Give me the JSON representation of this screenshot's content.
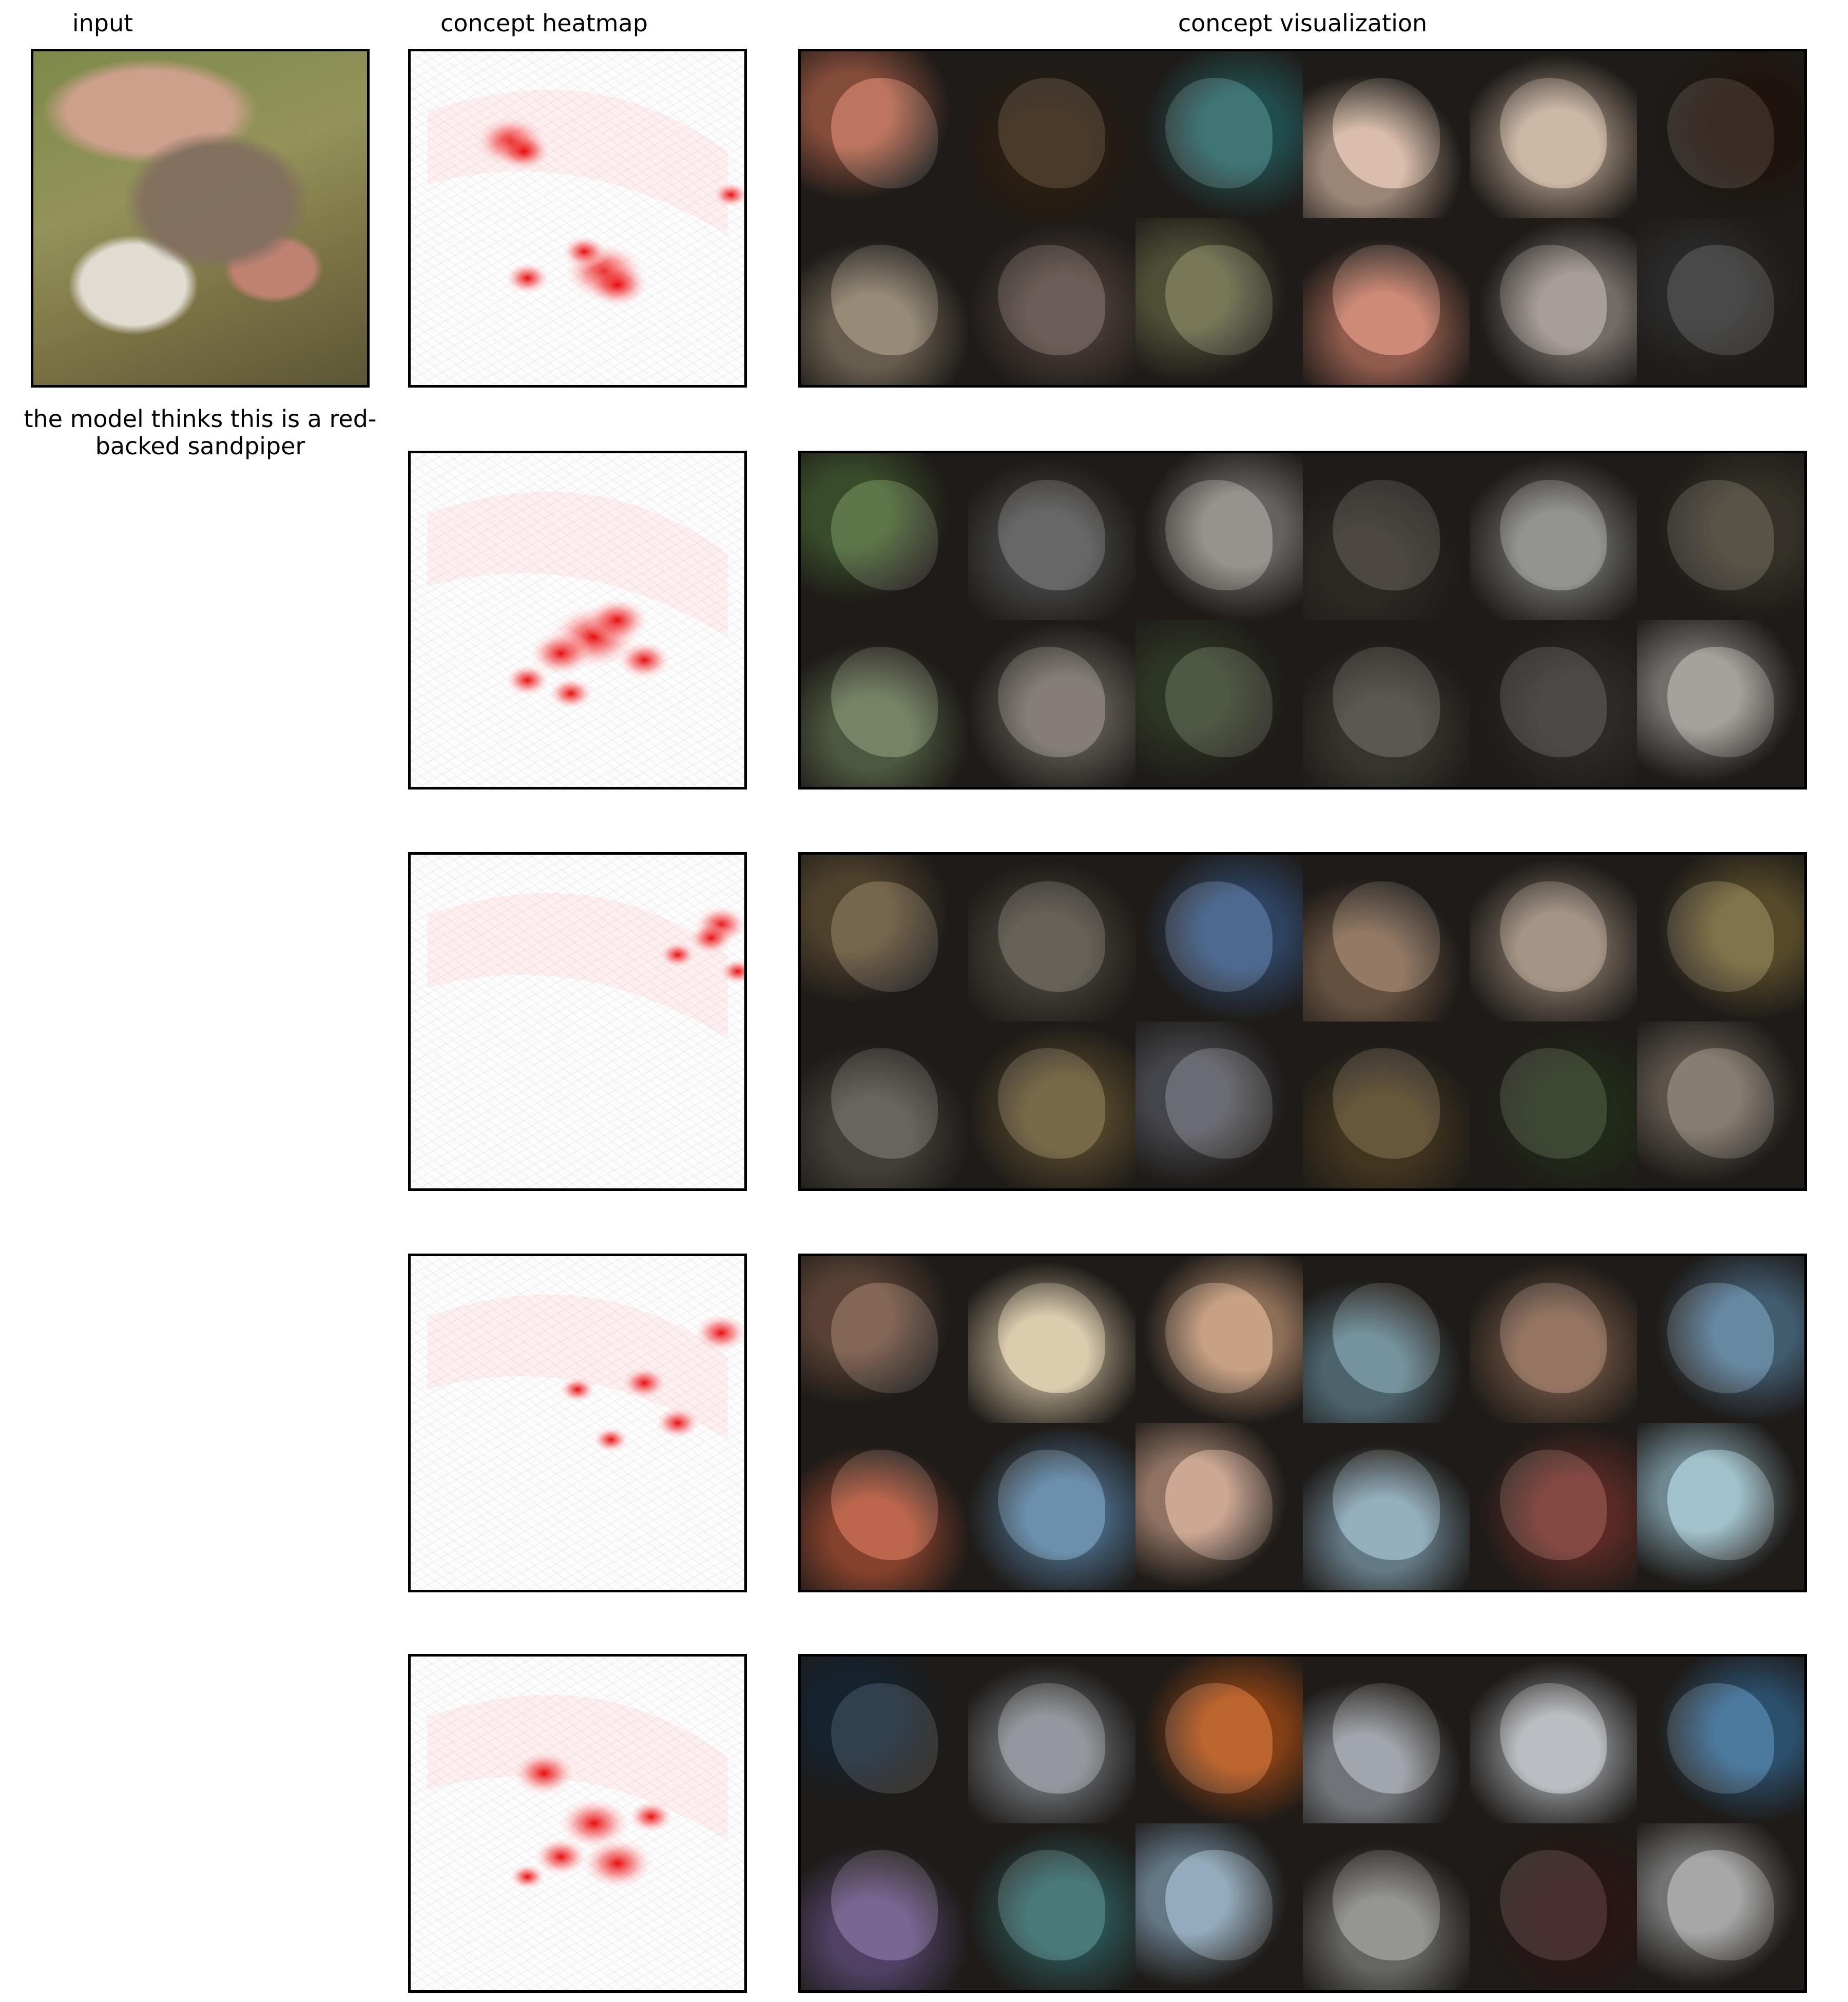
{
  "titles": {
    "input": "input",
    "heatmap": "concept heatmap",
    "visualization": "concept visualization"
  },
  "caption": "the model thinks this is a red-backed sandpiper",
  "concepts": [
    {
      "heat_spots": [
        [
          0.3,
          0.27,
          0.08
        ],
        [
          0.34,
          0.3,
          0.06
        ],
        [
          0.58,
          0.66,
          0.09
        ],
        [
          0.62,
          0.7,
          0.07
        ],
        [
          0.35,
          0.68,
          0.05
        ],
        [
          0.52,
          0.6,
          0.05
        ],
        [
          0.96,
          0.43,
          0.04
        ]
      ],
      "tiles": [
        "#b86a52",
        "#3a2a17",
        "#2f6a6a",
        "#d7b9a4",
        "#c9b29f",
        "#2a1b12",
        "#8f826d",
        "#5e4f48",
        "#6d6d4b",
        "#c9806b",
        "#9f9690",
        "#3a3a3a"
      ]
    },
    {
      "heat_spots": [
        [
          0.55,
          0.55,
          0.1
        ],
        [
          0.62,
          0.5,
          0.07
        ],
        [
          0.45,
          0.6,
          0.07
        ],
        [
          0.7,
          0.62,
          0.06
        ],
        [
          0.35,
          0.68,
          0.05
        ],
        [
          0.48,
          0.72,
          0.05
        ]
      ],
      "tiles": [
        "#4f6a3a",
        "#5b5b5b",
        "#8d8a84",
        "#3d3832",
        "#8a8a88",
        "#4a4538",
        "#6a7a58",
        "#7a736c",
        "#3f4a33",
        "#4a4a40",
        "#3d3b38",
        "#9e9a95"
      ]
    },
    {
      "heat_spots": [
        [
          0.93,
          0.21,
          0.06
        ],
        [
          0.9,
          0.25,
          0.05
        ],
        [
          0.98,
          0.35,
          0.04
        ],
        [
          0.8,
          0.3,
          0.04
        ]
      ],
      "tiles": [
        "#6b5a3e",
        "#5a554a",
        "#3f5d86",
        "#8b6f58",
        "#9c8b7b",
        "#76663a",
        "#5c5850",
        "#6d5d3a",
        "#5f6068",
        "#5b4a2b",
        "#2d3b22",
        "#7d7367"
      ]
    },
    {
      "heat_spots": [
        [
          0.93,
          0.23,
          0.06
        ],
        [
          0.7,
          0.38,
          0.05
        ],
        [
          0.5,
          0.4,
          0.04
        ],
        [
          0.8,
          0.5,
          0.05
        ],
        [
          0.6,
          0.55,
          0.04
        ]
      ],
      "tiles": [
        "#7a5a48",
        "#d9c8a8",
        "#c49a7a",
        "#6a8a96",
        "#8c6a55",
        "#5a7e9a",
        "#b85a3e",
        "#5f86a6",
        "#c8a08a",
        "#8aa8b8",
        "#7a3a32",
        "#9abcc8"
      ]
    },
    {
      "heat_spots": [
        [
          0.4,
          0.35,
          0.07
        ],
        [
          0.55,
          0.5,
          0.08
        ],
        [
          0.62,
          0.62,
          0.08
        ],
        [
          0.45,
          0.6,
          0.06
        ],
        [
          0.72,
          0.48,
          0.05
        ],
        [
          0.35,
          0.66,
          0.04
        ]
      ],
      "tiles": [
        "#1f3040",
        "#8a8f95",
        "#b8581e",
        "#9a9ea5",
        "#b5b8bd",
        "#3d6e96",
        "#6d5a8a",
        "#3a6e6e",
        "#8aa5b8",
        "#8c8c88",
        "#3a1e1e",
        "#a0a0a0"
      ]
    }
  ]
}
